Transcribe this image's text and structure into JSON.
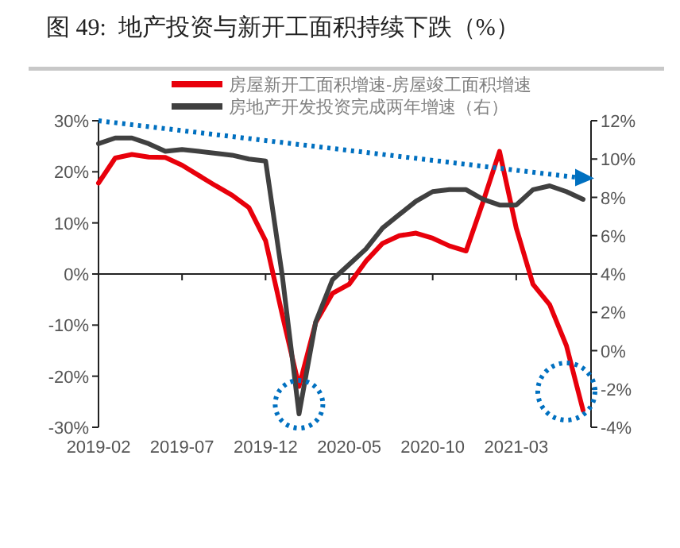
{
  "chart_data": {
    "type": "line",
    "title": "图 49:  地产投资与新开工面积持续下跌（%）",
    "categories": [
      "2019-02",
      null,
      null,
      null,
      null,
      "2019-07",
      null,
      null,
      null,
      null,
      "2019-12",
      null,
      null,
      null,
      null,
      "2020-05",
      null,
      null,
      null,
      null,
      "2020-10",
      null,
      null,
      null,
      null,
      "2021-03",
      null,
      null,
      null,
      null
    ],
    "series": [
      {
        "name": "房屋新开工面积增速-房屋竣工面积增速",
        "color": "#e8000b",
        "values": [
          17.8,
          22.7,
          23.4,
          22.9,
          22.8,
          21.3,
          19.3,
          17.3,
          15.4,
          13,
          6.5,
          -8,
          -22,
          -9.5,
          -3.8,
          -2,
          2.5,
          6,
          7.5,
          8,
          7,
          5.5,
          4.5,
          14,
          24,
          9,
          -2,
          -6,
          -14,
          -26.7
        ]
      },
      {
        "name": "房地产开发投资完成两年增速（右）",
        "color": "#404040",
        "axis": "y2",
        "values": [
          10.8,
          11.1,
          11.1,
          10.8,
          10.4,
          10.5,
          10.4,
          10.3,
          10.2,
          10,
          9.9,
          3.9,
          -3.3,
          1.5,
          3.7,
          4.5,
          5.3,
          6.4,
          7.1,
          7.8,
          8.3,
          8.4,
          8.4,
          7.9,
          7.6,
          7.6,
          8.4,
          8.6,
          8.3,
          7.9
        ]
      }
    ],
    "ylim": [
      -30,
      30
    ],
    "yticks": [
      {
        "value": -30,
        "label": "-30%"
      },
      {
        "value": -20,
        "label": "-20%"
      },
      {
        "value": -10,
        "label": "-10%"
      },
      {
        "value": 0,
        "label": "0%"
      },
      {
        "value": 10,
        "label": "10%"
      },
      {
        "value": 20,
        "label": "20%"
      },
      {
        "value": 30,
        "label": "30%"
      }
    ],
    "y2lim": [
      -4,
      12
    ],
    "y2ticks": [
      {
        "value": -4,
        "label": "-4%"
      },
      {
        "value": -2,
        "label": "-2%"
      },
      {
        "value": 0,
        "label": "0%"
      },
      {
        "value": 2,
        "label": "2%"
      },
      {
        "value": 4,
        "label": "4%"
      },
      {
        "value": 6,
        "label": "6%"
      },
      {
        "value": 8,
        "label": "8%"
      },
      {
        "value": 10,
        "label": "10%"
      },
      {
        "value": 12,
        "label": "12%"
      }
    ],
    "legend": "top",
    "marker": "none",
    "line_style": "solid"
  }
}
